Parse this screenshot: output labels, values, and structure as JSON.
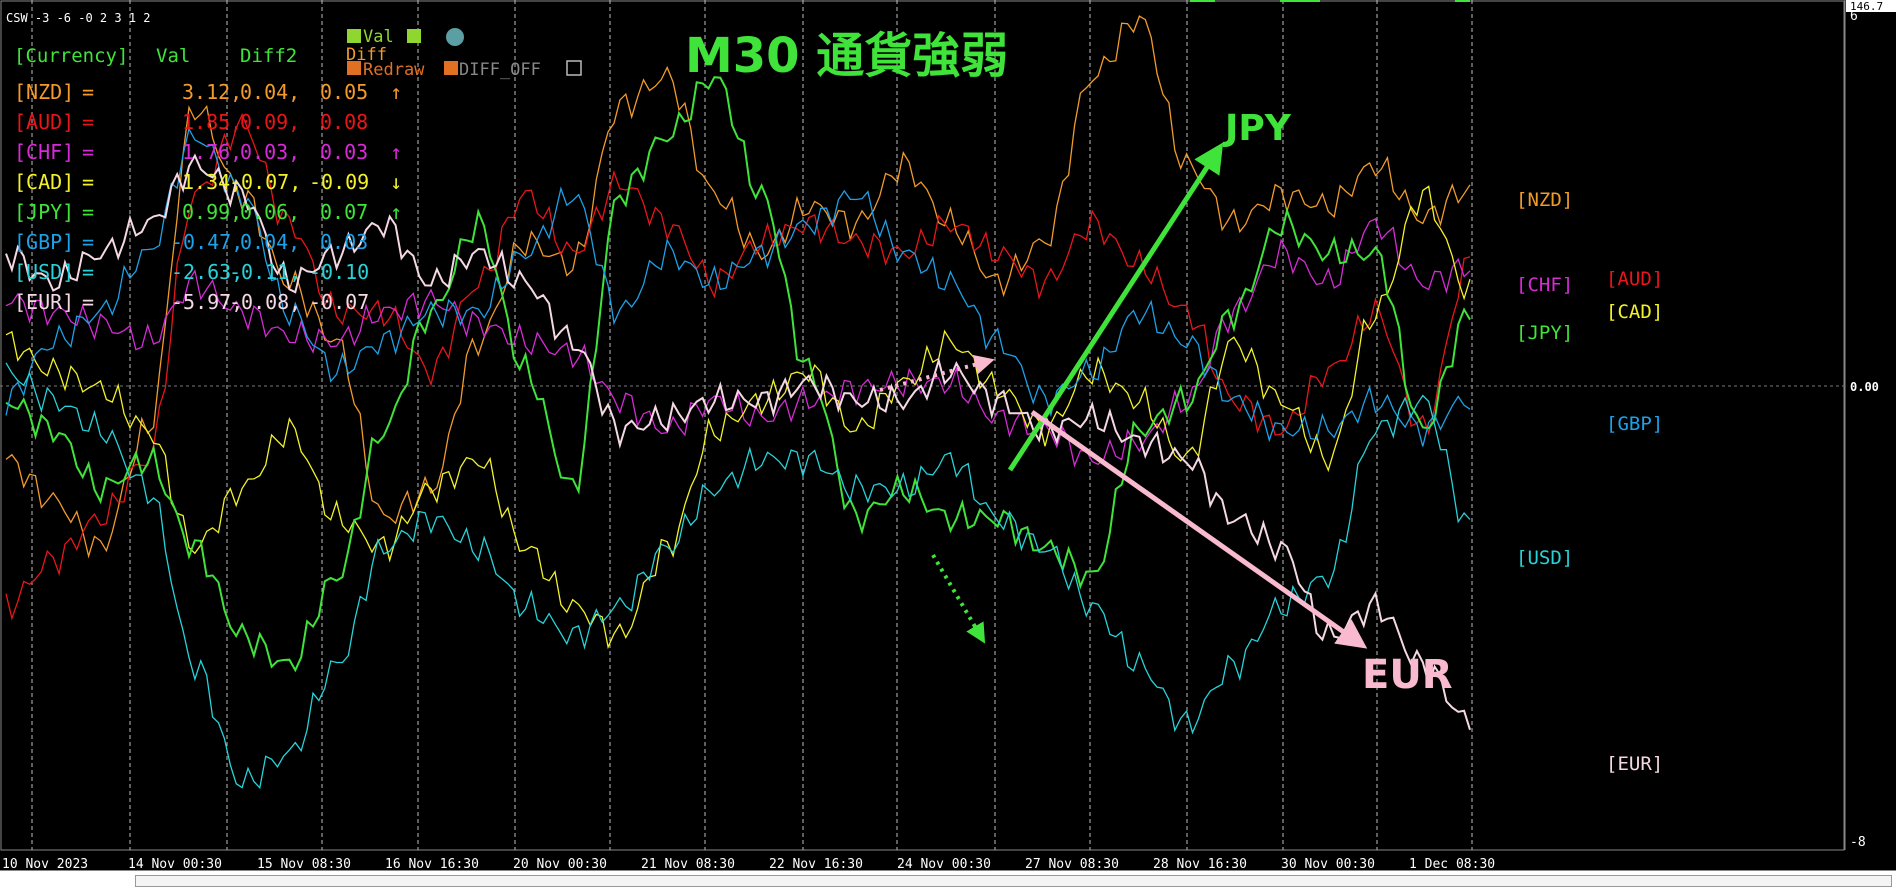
{
  "window": {
    "indicator_label": "CSW -3 -6 -0 2 3 1 2",
    "chart_title": "M30 通貨強弱",
    "price_top": "146.7",
    "axis_top": "6",
    "axis_zero": "0.00",
    "axis_bottom": "-8"
  },
  "controls": {
    "val_label": "Val",
    "diff_label": "Diff",
    "redraw_label": "Redraw",
    "diff_off_label": "DIFF_OFF"
  },
  "table": {
    "headers": [
      "[Currency]",
      "Val",
      "Diff2",
      "Diff"
    ],
    "rows": [
      {
        "cur": "[NZD]",
        "eq": "=",
        "val": "3.12,",
        "diff2": "0.04,",
        "diff": "0.05",
        "arrow": "↑",
        "color": "#F29B2B"
      },
      {
        "cur": "[AUD]",
        "eq": "=",
        "val": "1.85,",
        "diff2": "0.09,",
        "diff": "0.08",
        "arrow": "",
        "color": "#E8161A"
      },
      {
        "cur": "[CHF]",
        "eq": "=",
        "val": "1.76,",
        "diff2": "0.03,",
        "diff": "0.03",
        "arrow": "↑",
        "color": "#D62BD6"
      },
      {
        "cur": "[CAD]",
        "eq": "=",
        "val": "1.34,",
        "diff2": "-0.07,",
        "diff": "-0.09",
        "arrow": "↓",
        "color": "#F2F22A"
      },
      {
        "cur": "[JPY]",
        "eq": "=",
        "val": "0.99,",
        "diff2": "0.06,",
        "diff": "0.07",
        "arrow": "↑",
        "color": "#3FE33A"
      },
      {
        "cur": "[GBP]",
        "eq": "=",
        "val": "-0.47,",
        "diff2": "0.04,",
        "diff": "0.03",
        "arrow": "",
        "color": "#1DA1E8"
      },
      {
        "cur": "[USD]",
        "eq": "=",
        "val": "-2.63,",
        "diff2": "-0.11,",
        "diff": "-0.10",
        "arrow": "",
        "color": "#27D3D9"
      },
      {
        "cur": "[EUR]",
        "eq": "=",
        "val": "-5.97,",
        "diff2": "-0.08,",
        "diff": "-0.07",
        "arrow": "",
        "color": "#F4D8E4"
      }
    ]
  },
  "annotations": {
    "jpy": "JPY",
    "eur": "EUR"
  },
  "chart_data": {
    "type": "line",
    "title": "M30 通貨強弱",
    "ylim": [
      -8,
      6
    ],
    "grid": true,
    "x_ticks": [
      "10 Nov 2023",
      "14 Nov 00:30",
      "15 Nov 08:30",
      "16 Nov 16:30",
      "20 Nov 00:30",
      "21 Nov 08:30",
      "22 Nov 16:30",
      "24 Nov 00:30",
      "27 Nov 08:30",
      "28 Nov 16:30",
      "30 Nov 00:30",
      "1 Dec 08:30"
    ],
    "y_ticks": [
      6,
      0,
      -8
    ],
    "series": [
      {
        "name": "[NZD]",
        "color": "#F29B2B",
        "values": [
          -1.5,
          -2.2,
          -3,
          -1,
          4.5,
          3,
          1.5,
          0.5,
          -2.5,
          -2,
          0.5,
          2.2,
          1.8,
          4.5,
          5,
          3,
          2,
          2.8,
          2.5,
          3.5,
          2.5,
          1.5,
          2.2,
          5,
          6,
          3.5,
          2.5,
          3,
          2.8,
          3.5,
          2.6,
          3.1
        ]
      },
      {
        "name": "[AUD]",
        "color": "#E8161A",
        "values": [
          -4,
          -3.2,
          -2.5,
          -1.5,
          3,
          4.2,
          2.5,
          1,
          1,
          0,
          1.5,
          3,
          2,
          3.2,
          2.5,
          1.5,
          2.2,
          2.5,
          2.2,
          2,
          2.5,
          2,
          1.5,
          2.5,
          1.8,
          1,
          -0.5,
          -1,
          0,
          1,
          -1,
          1.85
        ]
      },
      {
        "name": "[CHF]",
        "color": "#D62BD6",
        "values": [
          1.2,
          1,
          0.8,
          0.5,
          1.5,
          1,
          0.6,
          0.5,
          1,
          1.2,
          0.8,
          0.5,
          0.3,
          -0.5,
          -1,
          -0.5,
          -0.8,
          -0.5,
          -0.3,
          -0.2,
          -0.2,
          -0.8,
          -1,
          -1.5,
          -1.2,
          -0.5,
          1,
          2,
          1.5,
          2.5,
          1.5,
          1.76
        ]
      },
      {
        "name": "[CAD]",
        "color": "#F2F22A",
        "values": [
          0.5,
          0,
          -0.3,
          -1,
          -3,
          -2,
          -1,
          -2.5,
          -3,
          -2,
          -1.5,
          -3,
          -4,
          -4.5,
          -3,
          -1,
          -0.5,
          0,
          -1,
          -0.2,
          0.5,
          -0.3,
          -1,
          0,
          -0.5,
          -1.5,
          0.5,
          -0.5,
          -1.5,
          1,
          3,
          1.34
        ]
      },
      {
        "name": "[JPY]",
        "color": "#3FE33A",
        "values": [
          -0.5,
          -1,
          -2,
          -1.5,
          -3,
          -4.5,
          -5,
          -3.5,
          -1,
          1,
          2.5,
          0,
          -2,
          3,
          4,
          5,
          3,
          0,
          -2.5,
          -2,
          -2.5,
          -2.5,
          -3,
          -3.5,
          -1,
          -0.5,
          1,
          2.5,
          2,
          2,
          -1,
          0.99
        ]
      },
      {
        "name": "[GBP]",
        "color": "#1DA1E8",
        "values": [
          -0.5,
          0.5,
          1,
          2,
          4,
          3,
          1,
          0,
          0.5,
          1,
          1,
          2,
          3,
          1,
          2,
          1.5,
          2,
          2.5,
          3,
          2,
          1.5,
          0.5,
          -0.5,
          0,
          1,
          0.5,
          -0.5,
          -1,
          -1,
          -0.5,
          -1,
          -0.47
        ]
      },
      {
        "name": "[USD]",
        "color": "#27D3D9",
        "values": [
          0,
          -0.5,
          -1,
          -2,
          -5,
          -7,
          -6.5,
          -5,
          -3,
          -2.5,
          -3,
          -4,
          -4.5,
          -4,
          -3,
          -2,
          -1.5,
          -1.5,
          -2,
          -2,
          -1.5,
          -2.5,
          -3,
          -4,
          -5,
          -6,
          -5,
          -4,
          -3.5,
          -1,
          -0.5,
          -2.63
        ]
      },
      {
        "name": "[EUR]",
        "color": "#F4D8E4",
        "values": [
          2,
          1.5,
          2,
          2.5,
          3.5,
          3,
          1.5,
          2,
          2.5,
          1.5,
          2,
          1.5,
          0.5,
          -1,
          -0.8,
          -0.5,
          -0.5,
          -0.2,
          -0.5,
          -0.5,
          0,
          -0.5,
          -1,
          -0.8,
          -1.2,
          -1.5,
          -2.5,
          -3,
          -4.5,
          -4,
          -5,
          -5.97
        ]
      }
    ]
  }
}
